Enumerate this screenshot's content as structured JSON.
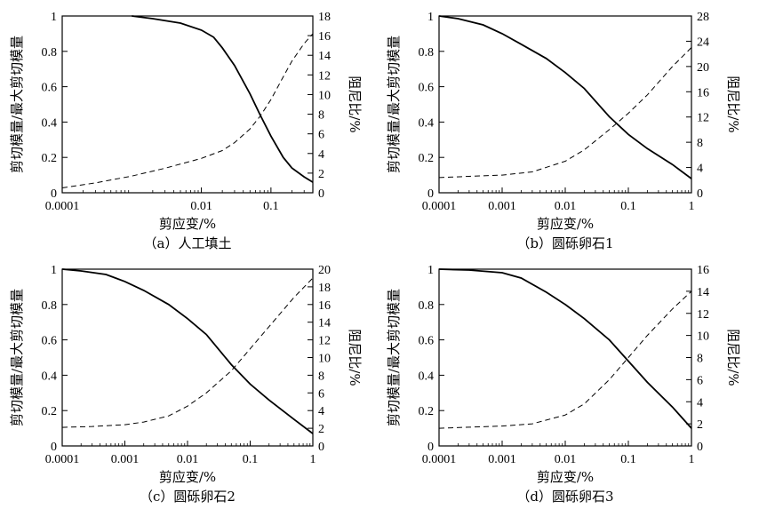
{
  "chart_data": [
    {
      "type": "line",
      "xscale": "log",
      "xlim": [
        0.0001,
        0.4
      ],
      "xticks": [
        "0.0001",
        "0.01",
        "0.1"
      ],
      "ylim_left": [
        0,
        1
      ],
      "yticks_left": [
        "0",
        "0.2",
        "0.4",
        "0.6",
        "0.8",
        "1"
      ],
      "ylim_right": [
        0,
        18
      ],
      "yticks_right": [
        "0",
        "2",
        "4",
        "6",
        "8",
        "10",
        "12",
        "14",
        "16",
        "18"
      ],
      "ylabel_left": "剪切模量/最大剪切模量",
      "ylabel_right": "阻尼比/%",
      "xlabel": "剪应变/%",
      "caption": "（a）人工填土",
      "series": [
        {
          "axis": "left",
          "style": "solid",
          "x": [
            0.001,
            0.002,
            0.005,
            0.01,
            0.015,
            0.02,
            0.03,
            0.05,
            0.07,
            0.1,
            0.15,
            0.2,
            0.3,
            0.4
          ],
          "y": [
            1.0,
            0.985,
            0.96,
            0.92,
            0.88,
            0.82,
            0.72,
            0.56,
            0.44,
            0.32,
            0.2,
            0.14,
            0.09,
            0.06
          ]
        },
        {
          "axis": "right",
          "style": "dashed",
          "x": [
            0.0001,
            0.0003,
            0.001,
            0.003,
            0.01,
            0.02,
            0.03,
            0.05,
            0.07,
            0.1,
            0.15,
            0.2,
            0.3,
            0.4
          ],
          "y": [
            0.5,
            1.0,
            1.7,
            2.5,
            3.5,
            4.3,
            5.1,
            6.5,
            7.8,
            9.5,
            11.8,
            13.4,
            15.2,
            16.2
          ]
        }
      ]
    },
    {
      "type": "line",
      "xscale": "log",
      "xlim": [
        0.0001,
        1
      ],
      "xticks": [
        "0.0001",
        "0.001",
        "0.01",
        "0.1",
        "1"
      ],
      "ylim_left": [
        0,
        1
      ],
      "yticks_left": [
        "0",
        "0.2",
        "0.4",
        "0.6",
        "0.8",
        "1"
      ],
      "ylim_right": [
        0,
        28
      ],
      "yticks_right": [
        "0",
        "4",
        "8",
        "12",
        "16",
        "20",
        "24",
        "28"
      ],
      "ylabel_left": "剪切模量/最大剪切模量",
      "ylabel_right": "阻尼比/%",
      "xlabel": "剪应变/%",
      "caption": "（b）圆砾卵石1",
      "series": [
        {
          "axis": "left",
          "style": "solid",
          "x": [
            0.0001,
            0.0002,
            0.0005,
            0.001,
            0.002,
            0.005,
            0.01,
            0.02,
            0.05,
            0.1,
            0.2,
            0.5,
            1.0
          ],
          "y": [
            1.0,
            0.985,
            0.95,
            0.9,
            0.84,
            0.76,
            0.68,
            0.59,
            0.43,
            0.33,
            0.25,
            0.16,
            0.08
          ]
        },
        {
          "axis": "right",
          "style": "dashed",
          "x": [
            0.0001,
            0.0003,
            0.001,
            0.003,
            0.01,
            0.02,
            0.05,
            0.1,
            0.2,
            0.5,
            1.0
          ],
          "y": [
            2.4,
            2.6,
            2.8,
            3.3,
            5.0,
            6.8,
            10.0,
            12.6,
            15.5,
            20.0,
            23.0
          ]
        }
      ]
    },
    {
      "type": "line",
      "xscale": "log",
      "xlim": [
        0.0001,
        1
      ],
      "xticks": [
        "0.0001",
        "0.001",
        "0.01",
        "0.1",
        "1"
      ],
      "ylim_left": [
        0,
        1
      ],
      "yticks_left": [
        "0",
        "0.2",
        "0.4",
        "0.6",
        "0.8",
        "1"
      ],
      "ylim_right": [
        0,
        20
      ],
      "yticks_right": [
        "0",
        "2",
        "4",
        "6",
        "8",
        "10",
        "12",
        "14",
        "16",
        "18",
        "20"
      ],
      "ylabel_left": "剪切模量/最大剪切模量",
      "ylabel_right": "阻尼比/%",
      "xlabel": "剪应变/%",
      "caption": "（c）圆砾卵石2",
      "series": [
        {
          "axis": "left",
          "style": "solid",
          "x": [
            0.0001,
            0.0002,
            0.0005,
            0.001,
            0.002,
            0.005,
            0.01,
            0.02,
            0.05,
            0.1,
            0.2,
            0.5,
            1.0
          ],
          "y": [
            1.0,
            0.99,
            0.97,
            0.93,
            0.88,
            0.8,
            0.72,
            0.63,
            0.46,
            0.35,
            0.26,
            0.15,
            0.07
          ]
        },
        {
          "axis": "right",
          "style": "dashed",
          "x": [
            0.0001,
            0.0003,
            0.001,
            0.002,
            0.005,
            0.01,
            0.02,
            0.05,
            0.1,
            0.2,
            0.5,
            1.0
          ],
          "y": [
            2.1,
            2.2,
            2.4,
            2.7,
            3.4,
            4.5,
            6.0,
            8.5,
            11.0,
            13.5,
            16.8,
            19.0
          ]
        }
      ]
    },
    {
      "type": "line",
      "xscale": "log",
      "xlim": [
        0.0001,
        1
      ],
      "xticks": [
        "0.0001",
        "0.001",
        "0.01",
        "0.1",
        "1"
      ],
      "ylim_left": [
        0,
        1
      ],
      "yticks_left": [
        "0",
        "0.2",
        "0.4",
        "0.6",
        "0.8",
        "1"
      ],
      "ylim_right": [
        0,
        16
      ],
      "yticks_right": [
        "0",
        "2",
        "4",
        "6",
        "8",
        "10",
        "12",
        "14",
        "16"
      ],
      "ylabel_left": "剪切模量/最大剪切模量",
      "ylabel_right": "阻尼比/%",
      "xlabel": "剪应变/%",
      "caption": "（d）圆砾卵石3",
      "series": [
        {
          "axis": "left",
          "style": "solid",
          "x": [
            0.0001,
            0.0003,
            0.001,
            0.002,
            0.005,
            0.01,
            0.02,
            0.05,
            0.1,
            0.2,
            0.5,
            1.0
          ],
          "y": [
            1.0,
            0.995,
            0.98,
            0.95,
            0.87,
            0.8,
            0.72,
            0.6,
            0.48,
            0.36,
            0.22,
            0.1
          ]
        },
        {
          "axis": "right",
          "style": "dashed",
          "x": [
            0.0001,
            0.0003,
            0.001,
            0.003,
            0.01,
            0.02,
            0.05,
            0.1,
            0.2,
            0.5,
            1.0
          ],
          "y": [
            1.6,
            1.7,
            1.8,
            2.0,
            2.8,
            3.8,
            6.0,
            8.0,
            10.0,
            12.4,
            14.0
          ]
        }
      ]
    }
  ]
}
